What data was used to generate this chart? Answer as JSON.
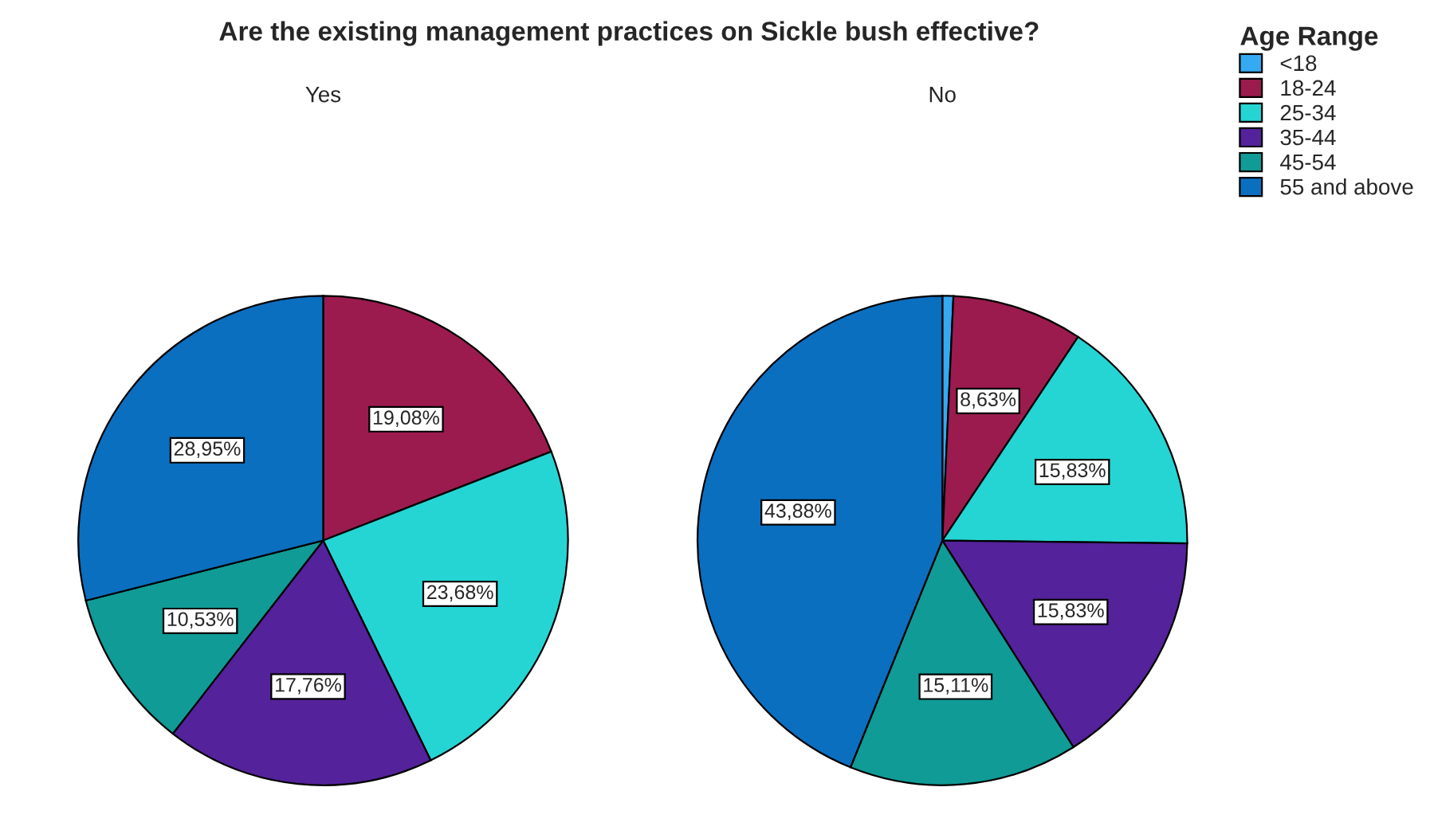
{
  "chart_data": [
    {
      "type": "pie",
      "title": "Are the existing management practices on Sickle bush effective?",
      "subtitle": "Yes",
      "categories": [
        "<18",
        "18-24",
        "25-34",
        "35-44",
        "45-54",
        "55 and above"
      ],
      "values": [
        0,
        19.08,
        23.68,
        17.76,
        10.53,
        28.95
      ],
      "colors": [
        "#35a9f2",
        "#9b1b4e",
        "#25d5d3",
        "#54229a",
        "#109b96",
        "#0b6fc0"
      ],
      "value_labels": [
        null,
        "19,08%",
        "23,68%",
        "17,76%",
        "10,53%",
        "28,95%"
      ],
      "legend_title": "Age Range",
      "legend": "right"
    },
    {
      "type": "pie",
      "subtitle": "No",
      "categories": [
        null,
        null,
        null,
        null,
        null,
        null
      ],
      "values": [
        0.72,
        8.63,
        15.83,
        15.83,
        15.11,
        43.88
      ],
      "colors": [
        "#35a9f2",
        "#9b1b4e",
        "#25d5d3",
        "#54229a",
        "#109b96",
        "#0b6fc0"
      ],
      "value_labels": [
        null,
        "8,63%",
        "15,83%",
        "15,83%",
        "15,11%",
        "43,88%"
      ]
    }
  ]
}
